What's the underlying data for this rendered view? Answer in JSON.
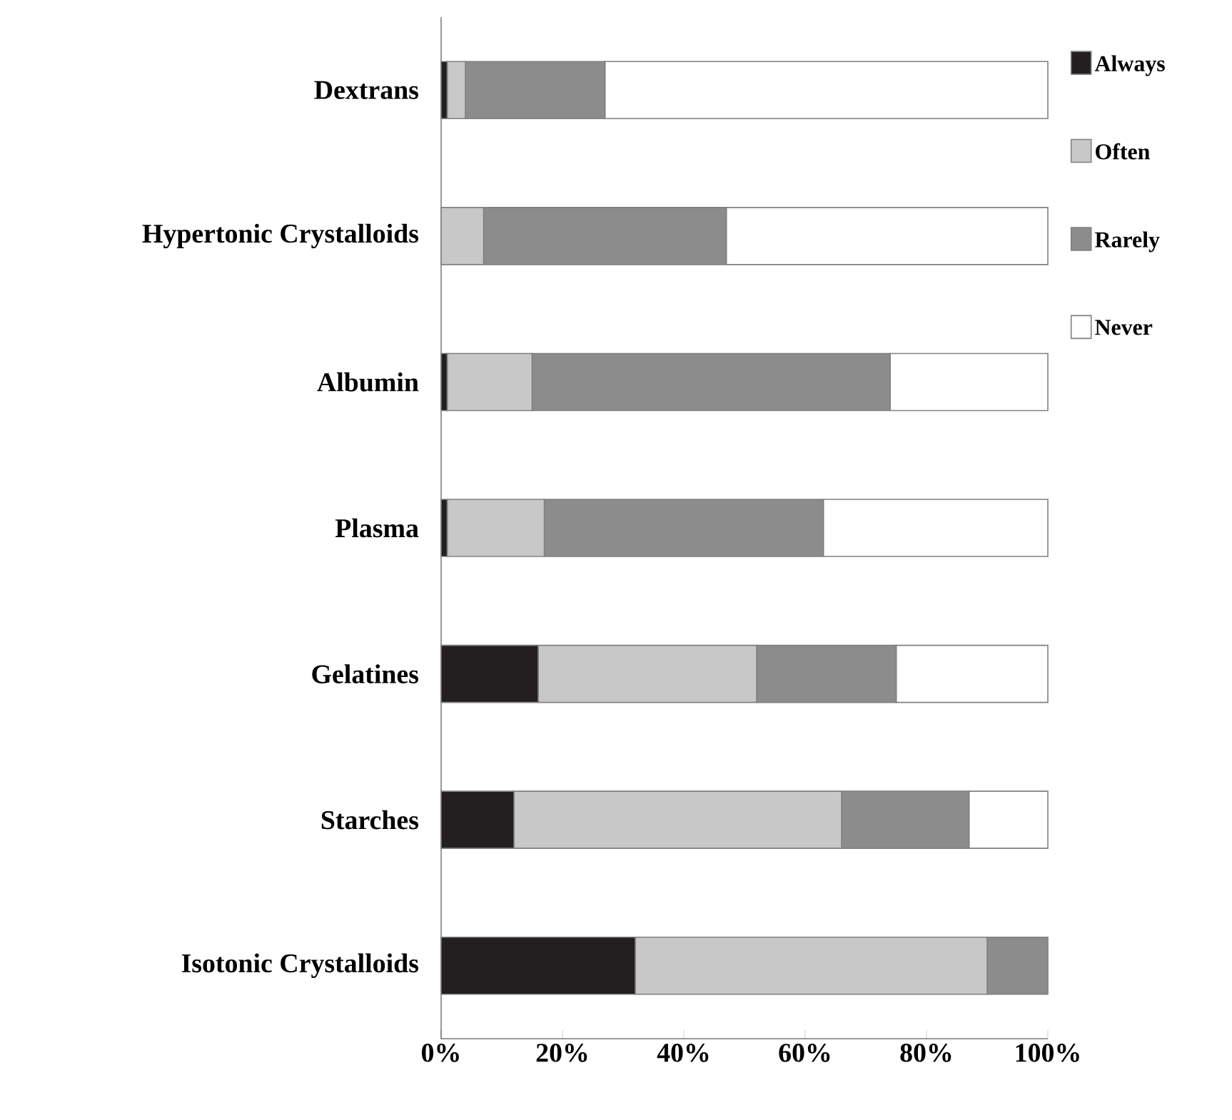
{
  "chart_data": {
    "type": "bar",
    "orientation": "horizontal",
    "stacked": true,
    "categories": [
      "Dextrans",
      "Hypertonic Crystalloids",
      "Albumin",
      "Plasma",
      "Gelatines",
      "Starches",
      "Isotonic Crystalloids"
    ],
    "series": [
      {
        "name": "Always",
        "color": "#231f20",
        "values": [
          1,
          0,
          1,
          1,
          16,
          12,
          32
        ]
      },
      {
        "name": "Often",
        "color": "#c8c8c8",
        "values": [
          3,
          7,
          14,
          16,
          36,
          54,
          58
        ]
      },
      {
        "name": "Rarely",
        "color": "#8c8c8c",
        "values": [
          23,
          40,
          59,
          46,
          23,
          21,
          10
        ]
      },
      {
        "name": "Never",
        "color": "#ffffff",
        "values": [
          73,
          53,
          26,
          37,
          25,
          13,
          0
        ]
      }
    ],
    "xlim": [
      0,
      100
    ],
    "xticks": [
      {
        "value": 0,
        "label": "0%"
      },
      {
        "value": 20,
        "label": "20%"
      },
      {
        "value": 40,
        "label": "40%"
      },
      {
        "value": 60,
        "label": "60%"
      },
      {
        "value": 80,
        "label": "80%"
      },
      {
        "value": 100,
        "label": "100%"
      }
    ],
    "grid": false,
    "legend": "right"
  }
}
